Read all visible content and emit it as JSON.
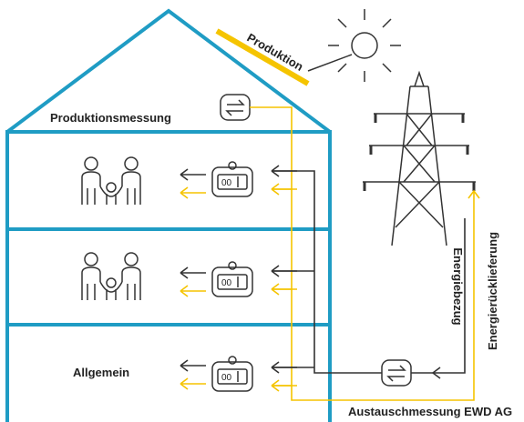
{
  "labels": {
    "production": "Produktion",
    "production_metering": "Produktionsmessung",
    "general": "Allgemein",
    "exchange_metering": "Austauschmessung EWD AG",
    "energy_supply": "Energiebezug",
    "energy_return": "Energierücklieferung"
  }
}
